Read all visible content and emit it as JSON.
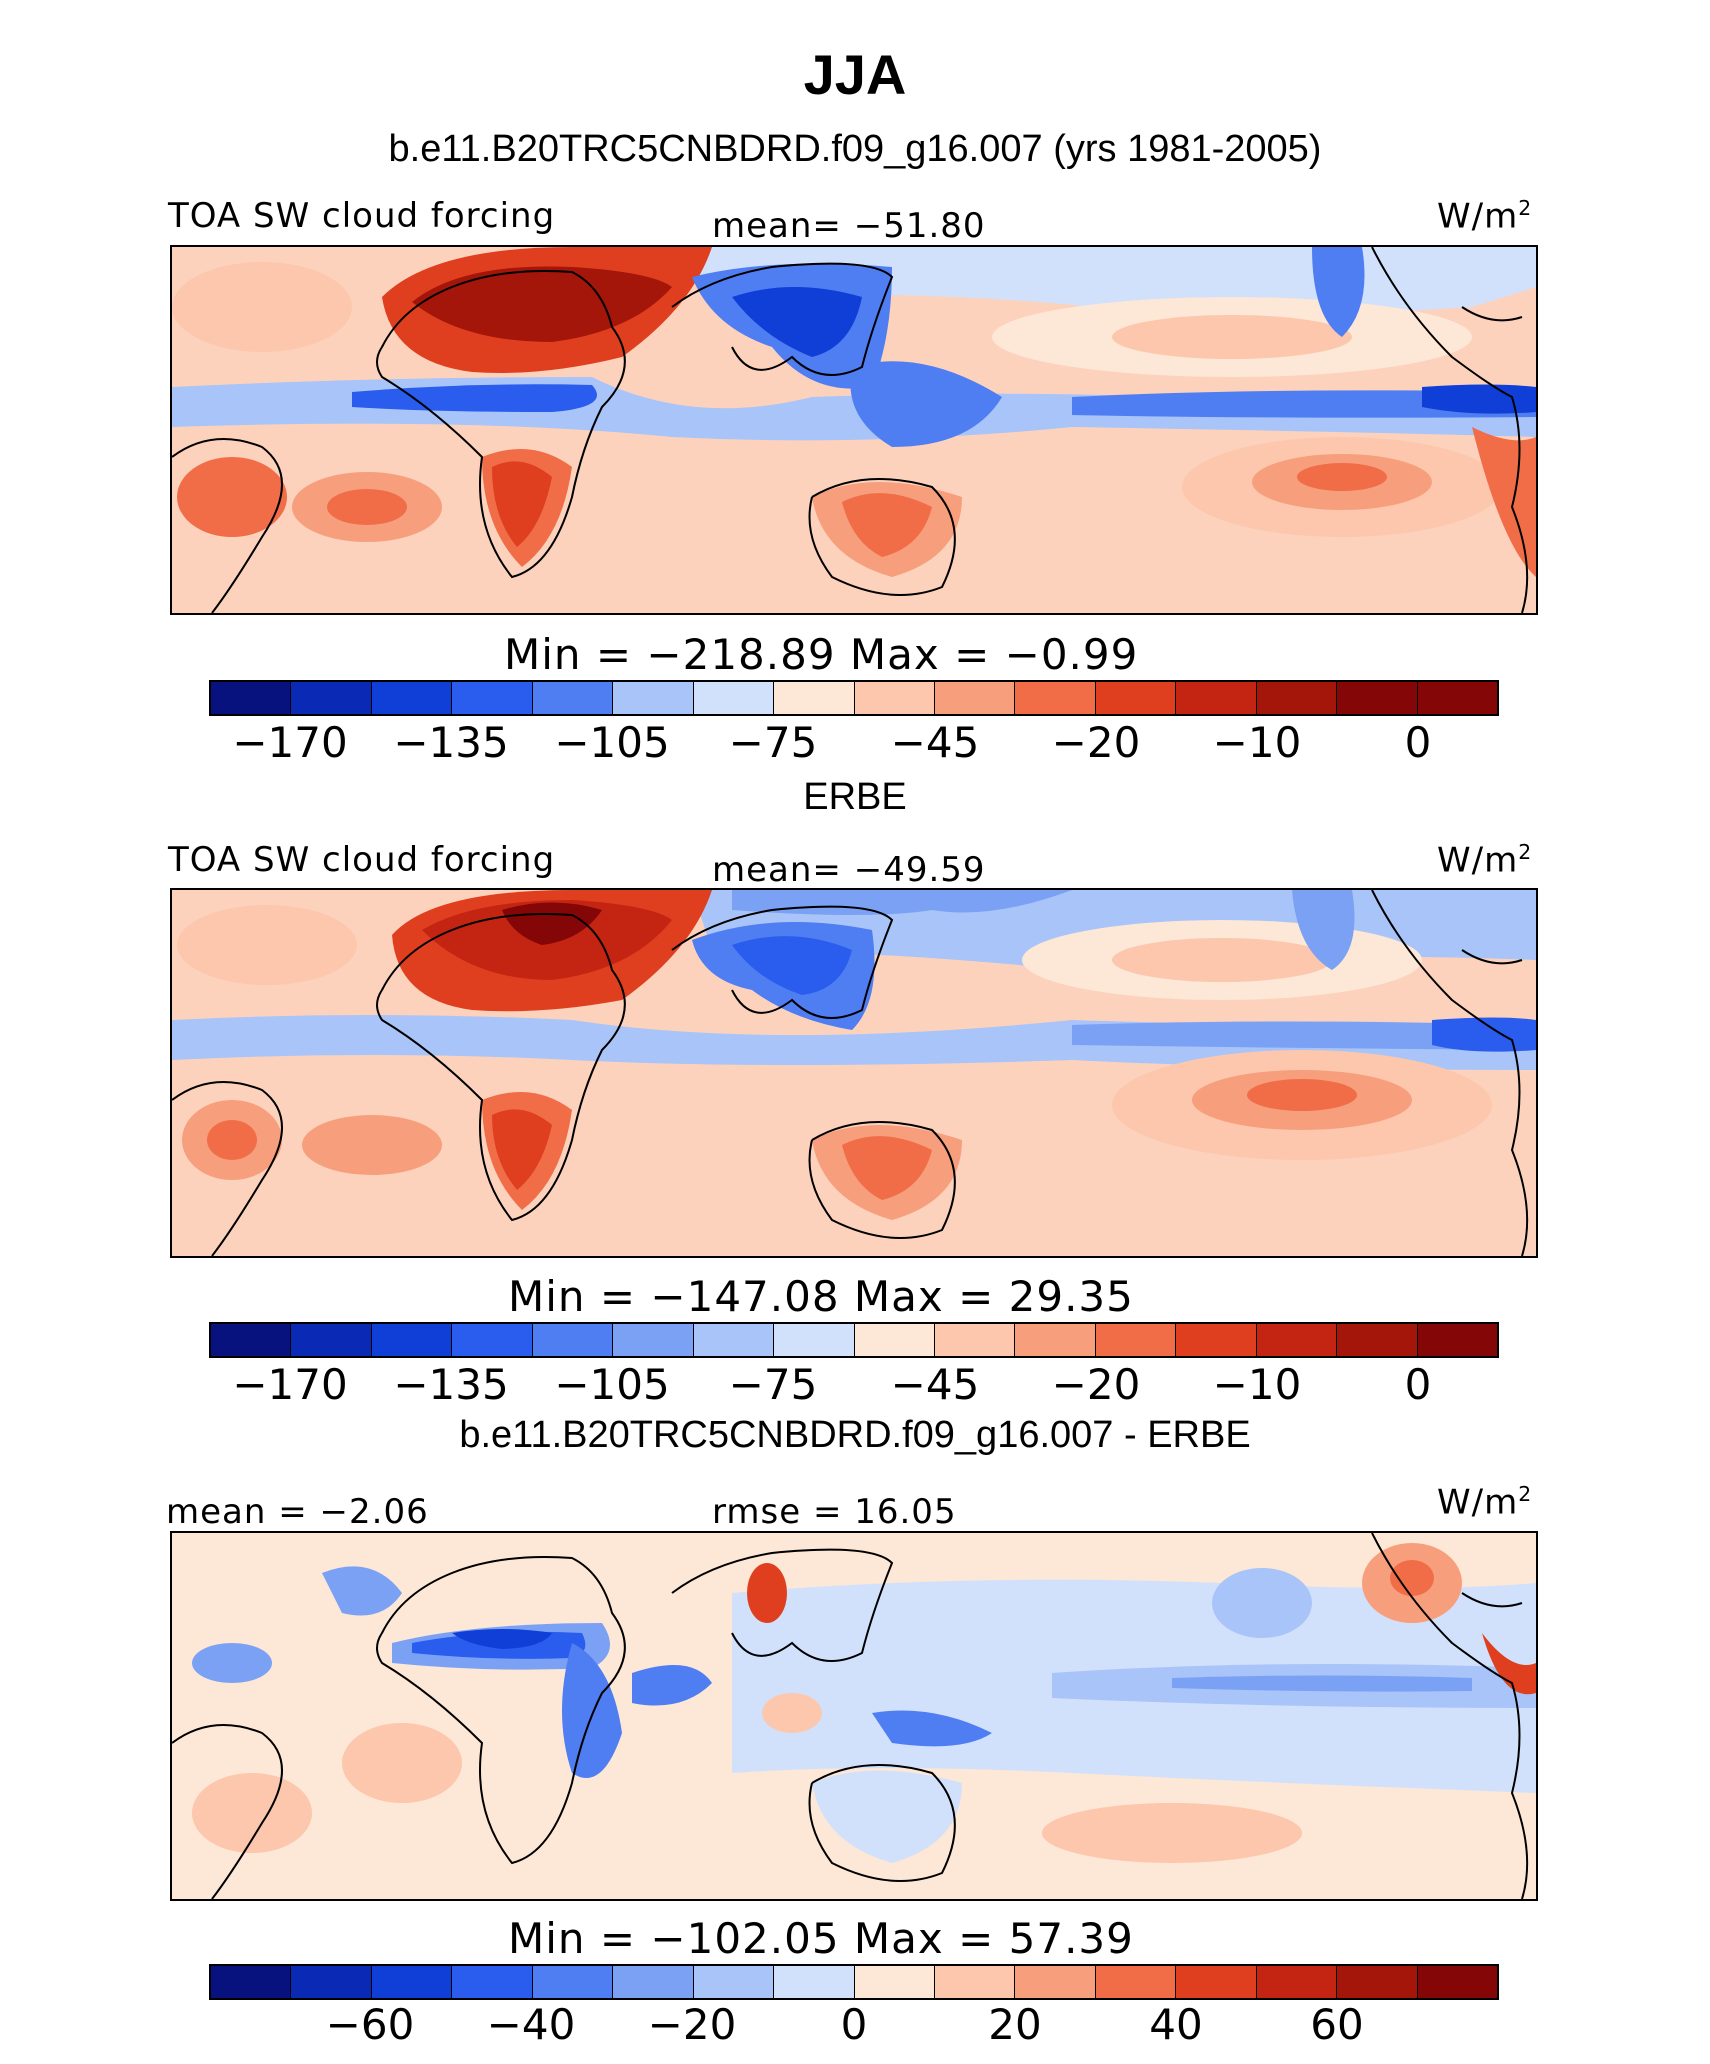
{
  "title": "JJA",
  "panels": [
    {
      "subtitle": "b.e11.B20TRC5CNBDRD.f09_g16.007 (yrs 1981-2005)",
      "left_label": "TOA SW cloud forcing",
      "center_label": "mean= −51.80",
      "units_base": "W/m",
      "units_exp": "2",
      "minmax": "Min  =  −218.89  Max  =   −0.99",
      "colorbar_ticks": [
        "−170",
        "−135",
        "−105",
        "−75",
        "−45",
        "−20",
        "−10",
        "0"
      ]
    },
    {
      "subtitle": "ERBE",
      "left_label": "TOA SW cloud forcing",
      "center_label": "mean= −49.59",
      "units_base": "W/m",
      "units_exp": "2",
      "minmax": "Min  =  −147.08  Max  =   29.35",
      "colorbar_ticks": [
        "−170",
        "−135",
        "−105",
        "−75",
        "−45",
        "−20",
        "−10",
        "0"
      ]
    },
    {
      "subtitle": "b.e11.B20TRC5CNBDRD.f09_g16.007 - ERBE",
      "left_label": "mean =   −2.06",
      "center_label": "rmse =   16.05",
      "units_base": "W/m",
      "units_exp": "2",
      "minmax": "Min  =  −102.05  Max  =   57.39",
      "colorbar_ticks": [
        "−60",
        "−40",
        "−20",
        "0",
        "20",
        "40",
        "60"
      ]
    }
  ],
  "colors": {
    "palette": [
      "#08127f",
      "#0a2ab5",
      "#0f3fd6",
      "#2a5cee",
      "#4f7df2",
      "#7ba1f5",
      "#a8c4f8",
      "#d2e1fb",
      "#fde7d6",
      "#fcc7ac",
      "#f79f7c",
      "#f06d48",
      "#df3f1f",
      "#c42412",
      "#a4150a",
      "#850606"
    ]
  }
}
